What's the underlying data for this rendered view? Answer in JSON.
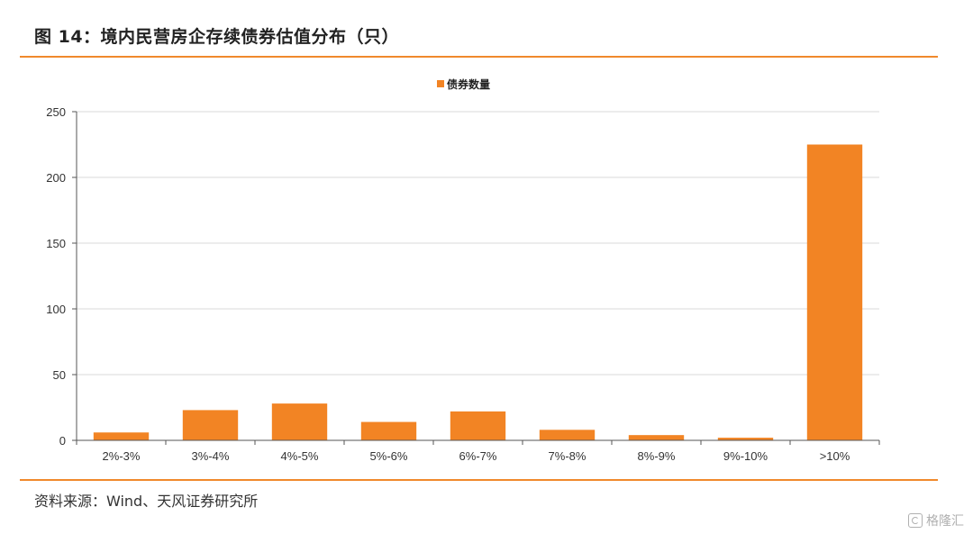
{
  "header": {
    "title": "图 14：境内民营房企存续债券估值分布（只）"
  },
  "footer": {
    "source": "资料来源：Wind、天风证券研究所",
    "watermark": "格隆汇"
  },
  "colors": {
    "bar": "#f28424",
    "rule": "#f0892c",
    "axis": "#555555",
    "grid": "#d9d9d9"
  },
  "chart_data": {
    "type": "bar",
    "categories": [
      "2%-3%",
      "3%-4%",
      "4%-5%",
      "5%-6%",
      "6%-7%",
      "7%-8%",
      "8%-9%",
      "9%-10%",
      ">10%"
    ],
    "series": [
      {
        "name": "债券数量",
        "values": [
          6,
          23,
          28,
          14,
          22,
          8,
          4,
          2,
          225
        ]
      }
    ],
    "ylim": [
      0,
      250
    ],
    "yticks": [
      0,
      50,
      100,
      150,
      200,
      250
    ],
    "legend": "top-center",
    "grid": true
  }
}
